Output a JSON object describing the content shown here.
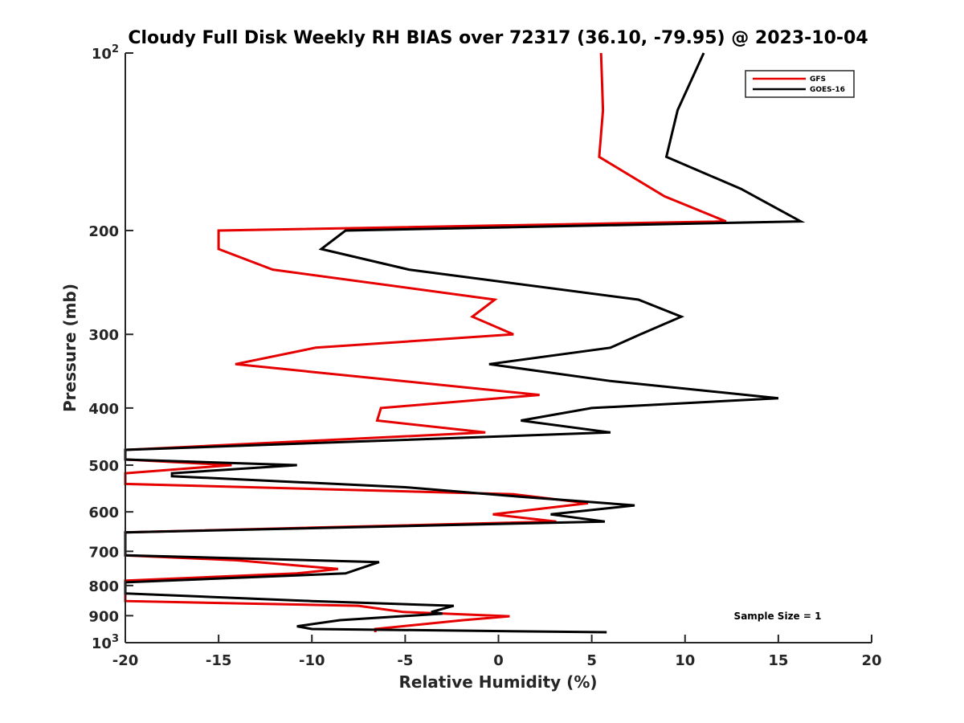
{
  "chart_data": {
    "type": "line",
    "title": "Cloudy Full Disk Weekly RH BIAS over 72317 (36.10, -79.95) @ 2023-10-04",
    "xlabel": "Relative Humidity (%)",
    "ylabel": "Pressure (mb)",
    "xlim": [
      -20,
      20
    ],
    "ylim": [
      100,
      1000
    ],
    "y_scale": "log",
    "y_reversed": true,
    "x_ticks": [
      "-20",
      "-15",
      "-10",
      "-5",
      "0",
      "5",
      "10",
      "15",
      "20"
    ],
    "y_ticks": [
      {
        "value": 100,
        "base": "10",
        "exp": "2"
      },
      {
        "value": 200,
        "label": "200"
      },
      {
        "value": 300,
        "label": "300"
      },
      {
        "value": 400,
        "label": "400"
      },
      {
        "value": 500,
        "label": "500"
      },
      {
        "value": 600,
        "label": "600"
      },
      {
        "value": 700,
        "label": "700"
      },
      {
        "value": 800,
        "label": "800"
      },
      {
        "value": 900,
        "label": "900"
      },
      {
        "value": 1000,
        "base": "10",
        "exp": "3"
      }
    ],
    "legend_position": "top-right",
    "annotation": "Sample Size = 1",
    "series": [
      {
        "name": "GFS",
        "color": "#e60000",
        "points": [
          [
            5.5,
            100
          ],
          [
            5.6,
            125
          ],
          [
            5.4,
            150
          ],
          [
            8.9,
            175
          ],
          [
            12.2,
            193
          ],
          [
            -15.0,
            200
          ],
          [
            -15.0,
            215
          ],
          [
            -12.1,
            233
          ],
          [
            -0.2,
            262
          ],
          [
            -1.4,
            280
          ],
          [
            0.8,
            300
          ],
          [
            -9.8,
            316
          ],
          [
            -14.1,
            337
          ],
          [
            2.2,
            380
          ],
          [
            -6.3,
            400
          ],
          [
            -6.5,
            420
          ],
          [
            -0.7,
            440
          ],
          [
            -20.0,
            471
          ],
          [
            -20.0,
            489
          ],
          [
            -14.3,
            500
          ],
          [
            -20.0,
            516
          ],
          [
            -20.0,
            538
          ],
          [
            0.8,
            560
          ],
          [
            4.8,
            580
          ],
          [
            -0.3,
            606
          ],
          [
            3.1,
            623
          ],
          [
            -20.0,
            650
          ],
          [
            -20.0,
            700
          ],
          [
            -20.0,
            711
          ],
          [
            -14.0,
            725
          ],
          [
            -8.6,
            750
          ],
          [
            -10.8,
            763
          ],
          [
            -20.0,
            785
          ],
          [
            -20.0,
            800
          ],
          [
            -20.0,
            825
          ],
          [
            -20.0,
            850
          ],
          [
            -7.5,
            866
          ],
          [
            -5.1,
            887
          ],
          [
            0.6,
            902
          ],
          [
            -1.9,
            916
          ],
          [
            -6.6,
            948
          ],
          [
            -6.6,
            960
          ]
        ]
      },
      {
        "name": "GOES-16",
        "color": "#000000",
        "points": [
          [
            11.0,
            100
          ],
          [
            9.6,
            125
          ],
          [
            9.0,
            150
          ],
          [
            13.0,
            170
          ],
          [
            16.2,
            193
          ],
          [
            -8.2,
            200
          ],
          [
            -9.5,
            215
          ],
          [
            -4.8,
            233
          ],
          [
            7.5,
            262
          ],
          [
            9.8,
            280
          ],
          [
            7.6,
            300
          ],
          [
            6.0,
            316
          ],
          [
            -0.5,
            337
          ],
          [
            6.0,
            360
          ],
          [
            15.0,
            385
          ],
          [
            5.0,
            400
          ],
          [
            1.2,
            420
          ],
          [
            6.0,
            440
          ],
          [
            -20.0,
            471
          ],
          [
            -20.0,
            489
          ],
          [
            -10.8,
            500
          ],
          [
            -17.5,
            516
          ],
          [
            -17.5,
            522
          ],
          [
            -5.0,
            545
          ],
          [
            1.0,
            565
          ],
          [
            7.3,
            585
          ],
          [
            2.8,
            606
          ],
          [
            5.7,
            623
          ],
          [
            -20.0,
            650
          ],
          [
            -20.0,
            700
          ],
          [
            -20.0,
            711
          ],
          [
            -6.4,
            730
          ],
          [
            -8.2,
            763
          ],
          [
            -20.0,
            790
          ],
          [
            -20.0,
            800
          ],
          [
            -20.0,
            825
          ],
          [
            -10.0,
            850
          ],
          [
            -2.4,
            866
          ],
          [
            -3.6,
            887
          ],
          [
            -3.0,
            893
          ],
          [
            -8.5,
            916
          ],
          [
            -10.8,
            938
          ],
          [
            -10.0,
            948
          ],
          [
            5.8,
            960
          ]
        ]
      }
    ]
  }
}
